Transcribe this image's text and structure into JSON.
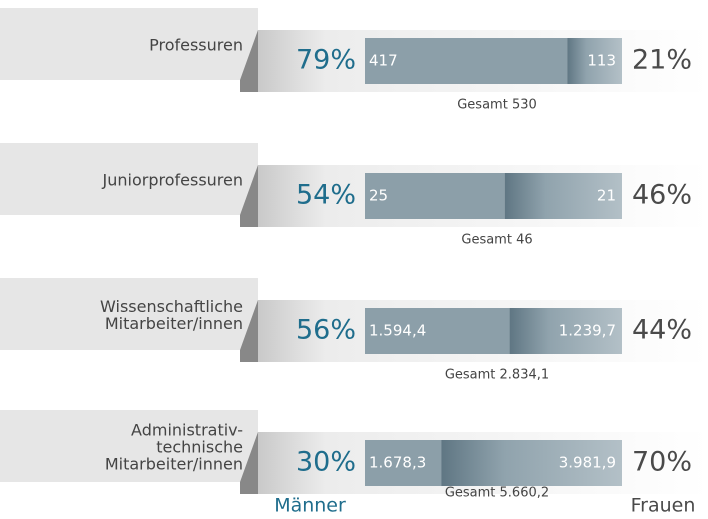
{
  "chart_data": {
    "type": "split-bar",
    "categories": [
      [
        "Professuren"
      ],
      [
        "Juniorprofessuren"
      ],
      [
        "Wissenschaftliche",
        "Mitarbeiter/innen"
      ],
      [
        "Administrativ-",
        "technische",
        "Mitarbeiter/innen"
      ]
    ],
    "series": [
      {
        "name": "Männer",
        "color": "#8c9fa9",
        "label_color": "#1f6d8c",
        "values": [
          417,
          25,
          1594.4,
          1678.3
        ],
        "value_labels": [
          "417",
          "25",
          "1.594,4",
          "1.678,3"
        ],
        "percents": [
          79,
          54,
          56,
          30
        ],
        "percent_labels": [
          "79%",
          "54%",
          "56%",
          "30%"
        ]
      },
      {
        "name": "Frauen",
        "color": "#a7b5bd",
        "label_color": "#4a4a4a",
        "values": [
          113,
          21,
          1239.7,
          3981.9
        ],
        "value_labels": [
          "113",
          "21",
          "1.239,7",
          "3.981,9"
        ],
        "percents": [
          21,
          46,
          44,
          70
        ],
        "percent_labels": [
          "21%",
          "46%",
          "44%",
          "70%"
        ]
      }
    ],
    "totals": [
      "Gesamt 530",
      "Gesamt 46",
      "Gesamt 2.834,1",
      "Gesamt 5.660,2"
    ]
  }
}
